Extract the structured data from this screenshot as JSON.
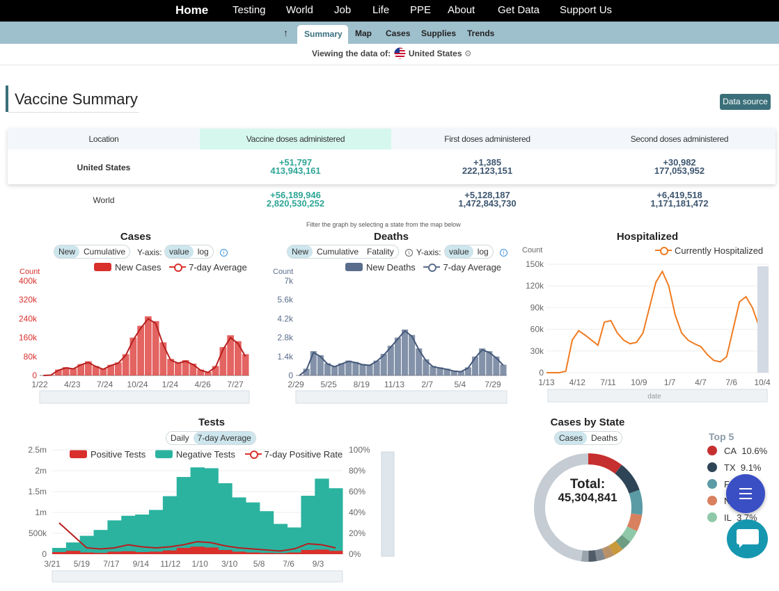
{
  "topnav": {
    "home": "Home",
    "testing": "Testing",
    "world": "World",
    "job": "Job",
    "life": "Life",
    "ppe": "PPE",
    "about": "About",
    "get_data": "Get Data",
    "support_us": "Support Us"
  },
  "subnav": {
    "up_icon": "↑",
    "summary": "Summary",
    "map": "Map",
    "cases": "Cases",
    "supplies": "Supplies",
    "trends": "Trends"
  },
  "viewing": {
    "label": "Viewing the data of:",
    "country": "United States",
    "flag_icon": "us-flag-icon",
    "settings_icon": "gear-icon"
  },
  "page": {
    "title": "Vaccine Summary",
    "data_source": "Data source"
  },
  "vaccine_table": {
    "headers": [
      "Location",
      "Vaccine doses administered",
      "First doses administered",
      "Second doses administered"
    ],
    "rows": [
      {
        "location": "United States",
        "doses_delta": "+51,797",
        "doses": "413,943,161",
        "first_delta": "+1,385",
        "first": "222,123,151",
        "second_delta": "+30,982",
        "second": "177,053,952"
      },
      {
        "location": "World",
        "doses_delta": "+56,189,946",
        "doses": "2,820,530,252",
        "first_delta": "+5,128,187",
        "first": "1,472,843,730",
        "second_delta": "+6,419,518",
        "second": "1,171,181,472"
      }
    ],
    "highlight_color": "#d6f7ee"
  },
  "filter_note": "Filter the graph by selecting a state from the map below",
  "cases_panel": {
    "title": "Cases",
    "toggle": [
      "New",
      "Cumulative"
    ],
    "yaxis_label": "Y-axis:",
    "yaxis_toggle": [
      "value",
      "log"
    ],
    "legend_bar": "New Cases",
    "legend_line": "7-day Average",
    "info_icon": "info-icon",
    "color": "#d9302c"
  },
  "deaths_panel": {
    "title": "Deaths",
    "toggle": [
      "New",
      "Cumulative",
      "Fatality"
    ],
    "yaxis_label": "Y-axis:",
    "yaxis_toggle": [
      "value",
      "log"
    ],
    "legend_bar": "New Deaths",
    "legend_line": "7-day Average",
    "info_icon": "info-icon",
    "color": "#5a6d8c"
  },
  "hosp_panel": {
    "title": "Hospitalized",
    "legend_line": "Currently Hospitalized",
    "color": "#f07b20",
    "slider_label": "date"
  },
  "tests_panel": {
    "title": "Tests",
    "toggle": [
      "Daily",
      "7-day Average"
    ],
    "legend_pos": "Positive Tests",
    "legend_neg": "Negative Tests",
    "legend_rate": "7-day Positive Rate",
    "pos_color": "#d9302c",
    "neg_color": "#2bb3a0"
  },
  "state_panel": {
    "title": "Cases by State",
    "toggle": [
      "Cases",
      "Deaths"
    ],
    "total_label": "Total:",
    "total_value": "45,304,841",
    "top5_label": "Top 5",
    "top5": [
      {
        "state": "CA",
        "pct": "10.6%",
        "color": "#c62f2f"
      },
      {
        "state": "TX",
        "pct": "9.1%",
        "color": "#2e4457"
      },
      {
        "state": "F",
        "pct": "",
        "color": "#5b9ba5"
      },
      {
        "state": "N",
        "pct": "",
        "color": "#d9805f"
      },
      {
        "state": "IL",
        "pct": "3.7%",
        "color": "#8fc8a8"
      }
    ],
    "ring_slices": [
      10.6,
      9.1,
      7.5,
      5.0,
      3.7,
      3.2,
      3.0,
      2.8,
      2.6,
      2.4,
      2.2,
      47.9
    ]
  },
  "floating": {
    "menu_icon": "menu-icon",
    "chat_icon": "chat-icon"
  },
  "chart_data": [
    {
      "type": "bar",
      "title": "Cases",
      "ylabel": "Count",
      "x_ticks": [
        "1/22",
        "4/23",
        "7/24",
        "10/24",
        "1/24",
        "4/26",
        "7/27"
      ],
      "y_ticks": [
        "0",
        "80k",
        "160k",
        "240k",
        "320k",
        "400k"
      ],
      "ylim": [
        0,
        400000
      ],
      "series": [
        {
          "name": "New Cases",
          "values": [
            0,
            2000,
            25000,
            35000,
            30000,
            48000,
            60000,
            40000,
            28000,
            45000,
            55000,
            90000,
            160000,
            210000,
            250000,
            230000,
            140000,
            70000,
            55000,
            65000,
            50000,
            25000,
            15000,
            40000,
            120000,
            170000,
            145000,
            90000
          ]
        },
        {
          "name": "7-day Average",
          "values": [
            0,
            1500,
            22000,
            32000,
            28000,
            45000,
            55000,
            38000,
            26000,
            42000,
            52000,
            85000,
            150000,
            200000,
            240000,
            220000,
            130000,
            65000,
            52000,
            60000,
            46000,
            22000,
            13000,
            35000,
            110000,
            160000,
            135000,
            80000
          ]
        }
      ]
    },
    {
      "type": "bar",
      "title": "Deaths",
      "ylabel": "Count",
      "x_ticks": [
        "2/29",
        "5/25",
        "8/19",
        "11/13",
        "2/7",
        "5/4",
        "7/29"
      ],
      "y_ticks": [
        "0",
        "1.4k",
        "2.8k",
        "4.2k",
        "5.6k",
        "7k"
      ],
      "ylim": [
        0,
        7000
      ],
      "series": [
        {
          "name": "New Deaths",
          "values": [
            0,
            500,
            1800,
            1500,
            900,
            700,
            900,
            1100,
            1000,
            850,
            800,
            1100,
            1600,
            2200,
            2800,
            3400,
            3000,
            2000,
            1200,
            700,
            600,
            500,
            350,
            300,
            600,
            1400,
            2000,
            1800,
            1400,
            800
          ]
        },
        {
          "name": "7-day Average",
          "values": [
            0,
            400,
            1700,
            1400,
            850,
            650,
            850,
            1050,
            950,
            800,
            750,
            1050,
            1500,
            2100,
            2700,
            3300,
            2900,
            1900,
            1100,
            650,
            550,
            450,
            320,
            280,
            550,
            1300,
            1900,
            1700,
            1300,
            750
          ]
        }
      ]
    },
    {
      "type": "line",
      "title": "Hospitalized",
      "ylabel": "Count",
      "xlabel": "date",
      "x_ticks": [
        "1/13",
        "4/12",
        "7/11",
        "10/9",
        "1/7",
        "4/7",
        "7/6",
        "10/4"
      ],
      "y_ticks": [
        "0",
        "30k",
        "60k",
        "90k",
        "120k",
        "150k"
      ],
      "ylim": [
        0,
        150000
      ],
      "series": [
        {
          "name": "Currently Hospitalized",
          "values": [
            0,
            0,
            0,
            2000,
            45000,
            58000,
            52000,
            45000,
            38000,
            70000,
            72000,
            55000,
            45000,
            40000,
            42000,
            55000,
            90000,
            125000,
            140000,
            120000,
            80000,
            55000,
            45000,
            40000,
            36000,
            25000,
            17000,
            15000,
            22000,
            60000,
            98000,
            105000,
            90000,
            65000
          ]
        }
      ]
    },
    {
      "type": "bar",
      "title": "Tests",
      "x_ticks": [
        "3/21",
        "5/19",
        "7/17",
        "9/14",
        "11/12",
        "1/10",
        "3/10",
        "5/8",
        "7/6",
        "9/3"
      ],
      "y_ticks": [
        "0",
        "500k",
        "1m",
        "1.5m",
        "2m",
        "2.5m"
      ],
      "ylim": [
        0,
        2500000
      ],
      "y2_ticks": [
        "0%",
        "20%",
        "40%",
        "60%",
        "80%",
        "100%"
      ],
      "y2lim": [
        0,
        100
      ],
      "series": [
        {
          "name": "Positive Tests",
          "values": [
            50000,
            80000,
            40000,
            30000,
            60000,
            70000,
            50000,
            60000,
            90000,
            150000,
            180000,
            160000,
            100000,
            60000,
            40000,
            30000,
            25000,
            40000,
            100000,
            110000,
            80000
          ]
        },
        {
          "name": "Negative Tests",
          "values": [
            100000,
            200000,
            400000,
            550000,
            750000,
            850000,
            900000,
            1000000,
            1300000,
            1700000,
            1900000,
            1900000,
            1600000,
            1300000,
            1200000,
            1000000,
            700000,
            600000,
            1300000,
            1700000,
            1500000
          ]
        },
        {
          "name": "7-day Positive Rate",
          "values": [
            30,
            18,
            6,
            5,
            6,
            9,
            7,
            6,
            7,
            9,
            12,
            11,
            8,
            6,
            5,
            4,
            3,
            5,
            10,
            9,
            6
          ]
        }
      ]
    },
    {
      "type": "pie",
      "title": "Cases by State",
      "categories": [
        "CA",
        "TX",
        "F",
        "N",
        "IL"
      ],
      "values": [
        10.6,
        9.1,
        7.5,
        5.0,
        3.7
      ]
    }
  ]
}
